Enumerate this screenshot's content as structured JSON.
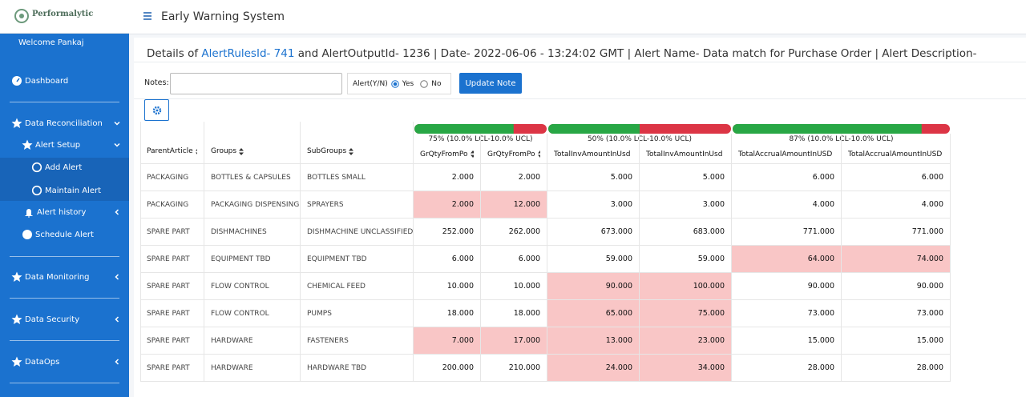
{
  "sidebar": {
    "logo": "Performalytic",
    "welcome": "Welcome Pankaj",
    "menu": [
      {
        "label": "Dashboard"
      },
      {
        "label": "Data Reconciliation"
      },
      {
        "label": "Alert Setup"
      },
      {
        "label": "Add Alert"
      },
      {
        "label": "Maintain Alert"
      },
      {
        "label": "Alert history"
      },
      {
        "label": "Schedule Alert"
      },
      {
        "label": "Data Monitoring"
      },
      {
        "label": "Data Security"
      },
      {
        "label": "DataOps"
      }
    ]
  },
  "header": {
    "title": "Early Warning System"
  },
  "details": {
    "prefix": "Details of",
    "link": "AlertRulesId- 741",
    "rest": "and AlertOutputId- 1236 | Date- 2022-06-06 - 13:24:02 GMT | Alert Name- Data match for Purchase Order | Alert Description-"
  },
  "form": {
    "notes_label": "Notes:",
    "alert_label": "Alert(Y/N)",
    "yes": "Yes",
    "no": "No",
    "button": "Update Note"
  },
  "table": {
    "groups": [
      {
        "label": "75% (10.0% LCL-10.0% UCL)",
        "percent": 75
      },
      {
        "label": "50% (10.0% LCL-10.0% UCL)",
        "percent": 50
      },
      {
        "label": "87% (10.0% LCL-10.0% UCL)",
        "percent": 87
      }
    ],
    "columns": [
      "ParentArticle",
      "Groups",
      "SubGroups",
      "GrQtyFromPo",
      "GrQtyFromPo",
      "TotalInvAmountInUsd",
      "TotalInvAmountInUsd",
      "TotalAccrualAmountInUSD",
      "TotalAccrualAmountInUSD"
    ],
    "rows": [
      {
        "cells": [
          "PACKAGING",
          "BOTTLES & CAPSULES",
          "BOTTLES SMALL",
          "2.000",
          "2.000",
          "5.000",
          "5.000",
          "6.000",
          "6.000"
        ],
        "flagged": []
      },
      {
        "cells": [
          "PACKAGING",
          "PACKAGING DISPENSING",
          "SPRAYERS",
          "2.000",
          "12.000",
          "3.000",
          "3.000",
          "4.000",
          "4.000"
        ],
        "flagged": [
          3,
          4
        ]
      },
      {
        "cells": [
          "SPARE PART",
          "DISHMACHINES",
          "DISHMACHINE UNCLASSIFIED",
          "252.000",
          "262.000",
          "673.000",
          "683.000",
          "771.000",
          "771.000"
        ],
        "flagged": []
      },
      {
        "cells": [
          "SPARE PART",
          "EQUIPMENT TBD",
          "EQUIPMENT TBD",
          "6.000",
          "6.000",
          "59.000",
          "59.000",
          "64.000",
          "74.000"
        ],
        "flagged": [
          7,
          8
        ]
      },
      {
        "cells": [
          "SPARE PART",
          "FLOW CONTROL",
          "CHEMICAL FEED",
          "10.000",
          "10.000",
          "90.000",
          "100.000",
          "90.000",
          "90.000"
        ],
        "flagged": [
          5,
          6
        ]
      },
      {
        "cells": [
          "SPARE PART",
          "FLOW CONTROL",
          "PUMPS",
          "18.000",
          "18.000",
          "65.000",
          "75.000",
          "73.000",
          "73.000"
        ],
        "flagged": [
          5,
          6
        ]
      },
      {
        "cells": [
          "SPARE PART",
          "HARDWARE",
          "FASTENERS",
          "7.000",
          "17.000",
          "13.000",
          "23.000",
          "15.000",
          "15.000"
        ],
        "flagged": [
          3,
          4,
          5,
          6
        ]
      },
      {
        "cells": [
          "SPARE PART",
          "HARDWARE",
          "HARDWARE TBD",
          "200.000",
          "210.000",
          "24.000",
          "34.000",
          "28.000",
          "28.000"
        ],
        "flagged": [
          5,
          6
        ]
      }
    ]
  }
}
